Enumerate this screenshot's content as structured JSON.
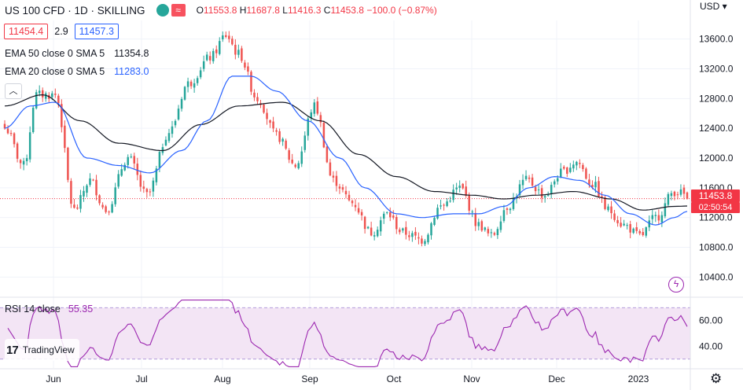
{
  "header": {
    "title": "US 100 CFD · 1D · SKILLING",
    "replay_label": "≈",
    "open_label": "O",
    "open": "11553.8",
    "high_label": "H",
    "high": "11687.8",
    "low_label": "L",
    "low": "11416.3",
    "close_label": "C",
    "close": "11453.8",
    "change": "−100.0 (−0.87%)"
  },
  "quote": {
    "bid": "11454.4",
    "spread": "2.9",
    "ask": "11457.3"
  },
  "indicators": {
    "ema50": {
      "label": "EMA 50 close 0 SMA 5",
      "value": "11354.8"
    },
    "ema20": {
      "label": "EMA 20 close 0 SMA 5",
      "value": "11283.0"
    }
  },
  "rsi": {
    "label": "RSI 14 close",
    "value": "55.35"
  },
  "currency": "USD",
  "price_tag": {
    "price": "11453.8",
    "countdown": "02:50:54"
  },
  "logo": {
    "mark": "17",
    "name": "TradingView"
  },
  "colors": {
    "up": "#26a69a",
    "down": "#ef5350",
    "ema50": "#131722",
    "ema20": "#2962ff",
    "rsi": "#9c27b0",
    "rsi_band": "#f3e5f5"
  },
  "icons": {
    "collapse": "chevron-up-icon",
    "lightning": "lightning-icon",
    "settings": "gear-icon"
  },
  "chart_data": {
    "type": "candlestick",
    "price_axis": {
      "ticks": [
        13600,
        13200,
        12800,
        12400,
        12000,
        11600,
        11200,
        10800,
        10400
      ],
      "tick_labels": [
        "13600.0",
        "13200.0",
        "12800.0",
        "12400.0",
        "12000.0",
        "11600.0",
        "11200.0",
        "10800.0",
        "10400.0"
      ],
      "ylim": [
        10150,
        13850
      ]
    },
    "rsi_axis": {
      "ticks": [
        60,
        40
      ],
      "tick_labels": [
        "60.00",
        "40.00"
      ],
      "ylim": [
        23,
        77
      ],
      "band": [
        30,
        70
      ]
    },
    "time_axis": {
      "labels": [
        "Jun",
        "Jul",
        "Aug",
        "Sep",
        "Oct",
        "Nov",
        "Dec",
        "2023"
      ]
    },
    "close_anchors": [
      [
        0,
        12400
      ],
      [
        6,
        11900
      ],
      [
        10,
        12850
      ],
      [
        16,
        12850
      ],
      [
        22,
        11300
      ],
      [
        27,
        11700
      ],
      [
        32,
        11300
      ],
      [
        39,
        12000
      ],
      [
        45,
        11500
      ],
      [
        52,
        12350
      ],
      [
        58,
        13000
      ],
      [
        65,
        13350
      ],
      [
        70,
        13650
      ],
      [
        74,
        13400
      ],
      [
        80,
        12800
      ],
      [
        86,
        12300
      ],
      [
        92,
        11900
      ],
      [
        98,
        12700
      ],
      [
        104,
        11700
      ],
      [
        110,
        11400
      ],
      [
        116,
        11000
      ],
      [
        121,
        11250
      ],
      [
        126,
        11000
      ],
      [
        132,
        10900
      ],
      [
        138,
        11350
      ],
      [
        144,
        11600
      ],
      [
        150,
        11100
      ],
      [
        154,
        10950
      ],
      [
        159,
        11350
      ],
      [
        165,
        11700
      ],
      [
        171,
        11500
      ],
      [
        176,
        11800
      ],
      [
        181,
        11950
      ],
      [
        186,
        11650
      ],
      [
        191,
        11300
      ],
      [
        196,
        11100
      ],
      [
        201,
        10950
      ],
      [
        206,
        11200
      ],
      [
        212,
        11550
      ],
      [
        216,
        11500
      ]
    ],
    "ema50_anchors": [
      [
        0,
        12700
      ],
      [
        12,
        12850
      ],
      [
        24,
        12500
      ],
      [
        36,
        12200
      ],
      [
        50,
        12100
      ],
      [
        62,
        12450
      ],
      [
        74,
        12700
      ],
      [
        88,
        12750
      ],
      [
        100,
        12500
      ],
      [
        112,
        12050
      ],
      [
        124,
        11750
      ],
      [
        136,
        11550
      ],
      [
        148,
        11500
      ],
      [
        158,
        11450
      ],
      [
        168,
        11500
      ],
      [
        180,
        11550
      ],
      [
        192,
        11450
      ],
      [
        202,
        11300
      ],
      [
        212,
        11350
      ],
      [
        216,
        11355
      ]
    ],
    "ema20_anchors": [
      [
        0,
        12400
      ],
      [
        8,
        12700
      ],
      [
        16,
        12750
      ],
      [
        26,
        12000
      ],
      [
        36,
        11900
      ],
      [
        46,
        11800
      ],
      [
        56,
        12100
      ],
      [
        64,
        12500
      ],
      [
        72,
        13100
      ],
      [
        78,
        13100
      ],
      [
        86,
        12900
      ],
      [
        96,
        12500
      ],
      [
        106,
        12000
      ],
      [
        114,
        11600
      ],
      [
        124,
        11250
      ],
      [
        132,
        11200
      ],
      [
        142,
        11250
      ],
      [
        150,
        11250
      ],
      [
        158,
        11350
      ],
      [
        166,
        11600
      ],
      [
        174,
        11750
      ],
      [
        182,
        11700
      ],
      [
        190,
        11500
      ],
      [
        198,
        11250
      ],
      [
        206,
        11100
      ],
      [
        212,
        11200
      ],
      [
        216,
        11283
      ]
    ],
    "rsi_values_start": 58,
    "last_close": 11453.8
  }
}
